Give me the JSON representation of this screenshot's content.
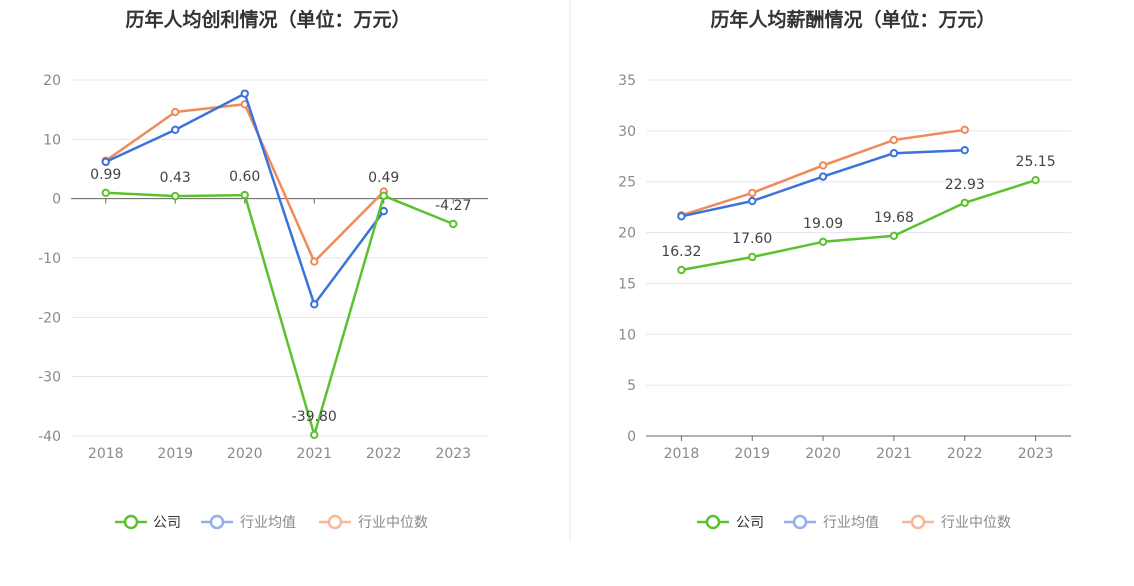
{
  "colors": {
    "company": "#5cc12e",
    "industry_avg": "#3b73d9",
    "industry_median": "#ef8a5b",
    "grid": "#e3e6ee",
    "axis": "#666666",
    "legend_inactive_avg": "#8fb0ea",
    "legend_inactive_median": "#f6b79a",
    "divider": "#e8e8e8"
  },
  "chart_data": [
    {
      "type": "line",
      "title": "历年人均创利情况（单位：万元）",
      "categories": [
        "2018",
        "2019",
        "2020",
        "2021",
        "2022",
        "2023"
      ],
      "ylim": [
        -40,
        20
      ],
      "yticks": [
        "20",
        "10",
        "0",
        "-10",
        "-20",
        "-30",
        "-40"
      ],
      "grid": true,
      "legend_position": "bottom",
      "series": [
        {
          "name": "公司",
          "values": [
            0.99,
            0.43,
            0.6,
            -39.8,
            0.49,
            -4.27
          ],
          "labels": [
            "0.99",
            "0.43",
            "0.60",
            "-39.80",
            "0.49",
            "-4.27"
          ]
        },
        {
          "name": "行业均值",
          "values": [
            6.2,
            11.6,
            17.7,
            -17.8,
            -2.1,
            null
          ]
        },
        {
          "name": "行业中位数",
          "values": [
            6.4,
            14.6,
            15.9,
            -10.6,
            1.2,
            null
          ]
        }
      ]
    },
    {
      "type": "line",
      "title": "历年人均薪酬情况（单位：万元）",
      "categories": [
        "2018",
        "2019",
        "2020",
        "2021",
        "2022",
        "2023"
      ],
      "ylim": [
        0,
        35
      ],
      "yticks": [
        "35",
        "30",
        "25",
        "20",
        "15",
        "10",
        "5",
        "0"
      ],
      "grid": true,
      "legend_position": "bottom",
      "series": [
        {
          "name": "公司",
          "values": [
            16.32,
            17.6,
            19.09,
            19.68,
            22.93,
            25.15
          ],
          "labels": [
            "16.32",
            "17.60",
            "19.09",
            "19.68",
            "22.93",
            "25.15"
          ]
        },
        {
          "name": "行业均值",
          "values": [
            21.6,
            23.1,
            25.5,
            27.8,
            28.1,
            null
          ]
        },
        {
          "name": "行业中位数",
          "values": [
            21.7,
            23.9,
            26.6,
            29.1,
            30.1,
            null
          ]
        }
      ]
    }
  ],
  "legend": {
    "company": "公司",
    "industry_avg": "行业均值",
    "industry_median": "行业中位数"
  }
}
